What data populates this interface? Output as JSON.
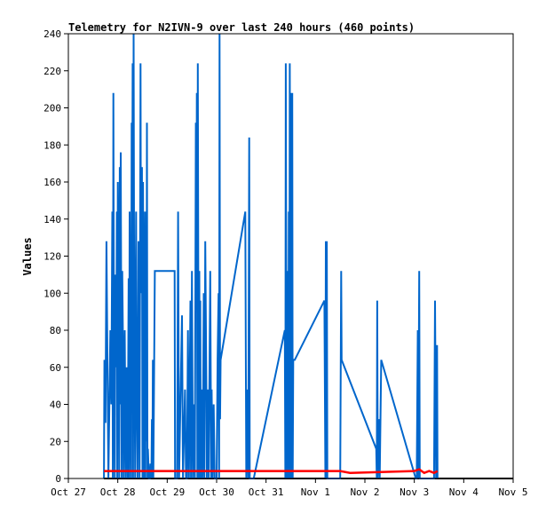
{
  "chart_data": {
    "type": "line",
    "title": "Telemetry for N2IVN-9 over last 240 hours (460 points)",
    "xlabel": "",
    "ylabel": "Values",
    "x_ticks": [
      "Oct 27",
      "Oct 28",
      "Oct 29",
      "Oct 30",
      "Oct 31",
      "Nov 1",
      "Nov 2",
      "Nov 3",
      "Nov 4",
      "Nov 5"
    ],
    "y_ticks": [
      "0",
      "20",
      "40",
      "60",
      "80",
      "100",
      "120",
      "140",
      "160",
      "180",
      "200",
      "220",
      "240"
    ],
    "xlim": [
      0,
      9
    ],
    "ylim": [
      0,
      240
    ],
    "grid": false,
    "legend": "none",
    "series": [
      {
        "color": "#0066cc",
        "points": [
          [
            0.72,
            0
          ],
          [
            0.73,
            64
          ],
          [
            0.75,
            30
          ],
          [
            0.77,
            128
          ],
          [
            0.79,
            64
          ],
          [
            0.81,
            0
          ],
          [
            0.83,
            40
          ],
          [
            0.85,
            80
          ],
          [
            0.87,
            40
          ],
          [
            0.89,
            144
          ],
          [
            0.9,
            0
          ],
          [
            0.91,
            208
          ],
          [
            0.92,
            100
          ],
          [
            0.94,
            0
          ],
          [
            0.95,
            110
          ],
          [
            0.97,
            60
          ],
          [
            0.98,
            144
          ],
          [
            0.99,
            0
          ],
          [
            1.0,
            160
          ],
          [
            1.02,
            80
          ],
          [
            1.03,
            0
          ],
          [
            1.04,
            168
          ],
          [
            1.05,
            40
          ],
          [
            1.06,
            176
          ],
          [
            1.08,
            0
          ],
          [
            1.09,
            112
          ],
          [
            1.11,
            60
          ],
          [
            1.12,
            0
          ],
          [
            1.14,
            80
          ],
          [
            1.16,
            0
          ],
          [
            1.18,
            60
          ],
          [
            1.2,
            0
          ],
          [
            1.22,
            108
          ],
          [
            1.23,
            0
          ],
          [
            1.24,
            144
          ],
          [
            1.25,
            72
          ],
          [
            1.27,
            0
          ],
          [
            1.28,
            192
          ],
          [
            1.29,
            100
          ],
          [
            1.3,
            224
          ],
          [
            1.31,
            0
          ],
          [
            1.32,
            240
          ],
          [
            1.33,
            128
          ],
          [
            1.35,
            0
          ],
          [
            1.37,
            144
          ],
          [
            1.38,
            60
          ],
          [
            1.4,
            0
          ],
          [
            1.42,
            128
          ],
          [
            1.44,
            0
          ],
          [
            1.46,
            224
          ],
          [
            1.47,
            100
          ],
          [
            1.49,
            168
          ],
          [
            1.5,
            0
          ],
          [
            1.51,
            160
          ],
          [
            1.52,
            80
          ],
          [
            1.53,
            0
          ],
          [
            1.55,
            144
          ],
          [
            1.56,
            0
          ],
          [
            1.57,
            96
          ],
          [
            1.58,
            20
          ],
          [
            1.59,
            192
          ],
          [
            1.6,
            0
          ],
          [
            1.61,
            16
          ],
          [
            1.63,
            0
          ],
          [
            1.65,
            0
          ],
          [
            1.66,
            8
          ],
          [
            1.68,
            0
          ],
          [
            1.69,
            32
          ],
          [
            1.7,
            0
          ],
          [
            1.71,
            64
          ],
          [
            1.72,
            0
          ],
          [
            1.75,
            112
          ],
          [
            2.15,
            112
          ],
          [
            2.16,
            0
          ],
          [
            2.2,
            0
          ],
          [
            2.22,
            144
          ],
          [
            2.24,
            0
          ],
          [
            2.3,
            88
          ],
          [
            2.32,
            0
          ],
          [
            2.36,
            48
          ],
          [
            2.38,
            0
          ],
          [
            2.4,
            0
          ],
          [
            2.42,
            80
          ],
          [
            2.44,
            0
          ],
          [
            2.47,
            96
          ],
          [
            2.48,
            0
          ],
          [
            2.5,
            112
          ],
          [
            2.52,
            0
          ],
          [
            2.54,
            40
          ],
          [
            2.56,
            0
          ],
          [
            2.58,
            192
          ],
          [
            2.59,
            100
          ],
          [
            2.6,
            208
          ],
          [
            2.61,
            0
          ],
          [
            2.62,
            224
          ],
          [
            2.63,
            100
          ],
          [
            2.64,
            0
          ],
          [
            2.65,
            112
          ],
          [
            2.66,
            0
          ],
          [
            2.67,
            96
          ],
          [
            2.68,
            0
          ],
          [
            2.7,
            48
          ],
          [
            2.71,
            0
          ],
          [
            2.72,
            8
          ],
          [
            2.74,
            100
          ],
          [
            2.75,
            0
          ],
          [
            2.77,
            128
          ],
          [
            2.79,
            60
          ],
          [
            2.8,
            0
          ],
          [
            2.82,
            48
          ],
          [
            2.84,
            0
          ],
          [
            2.87,
            112
          ],
          [
            2.89,
            0
          ],
          [
            2.9,
            48
          ],
          [
            2.92,
            0
          ],
          [
            2.94,
            40
          ],
          [
            2.96,
            0
          ],
          [
            3.0,
            0
          ],
          [
            3.02,
            64
          ],
          [
            3.04,
            100
          ],
          [
            3.05,
            0
          ],
          [
            3.06,
            240
          ],
          [
            3.07,
            32
          ],
          [
            3.08,
            64
          ],
          [
            3.58,
            144
          ],
          [
            3.6,
            0
          ],
          [
            3.62,
            48
          ],
          [
            3.64,
            0
          ],
          [
            3.66,
            184
          ],
          [
            3.67,
            0
          ],
          [
            3.75,
            0
          ],
          [
            4.38,
            80
          ],
          [
            4.39,
            0
          ],
          [
            4.4,
            224
          ],
          [
            4.42,
            0
          ],
          [
            4.44,
            112
          ],
          [
            4.45,
            0
          ],
          [
            4.46,
            144
          ],
          [
            4.47,
            0
          ],
          [
            4.48,
            224
          ],
          [
            4.5,
            0
          ],
          [
            4.51,
            208
          ],
          [
            4.52,
            0
          ],
          [
            4.53,
            208
          ],
          [
            4.54,
            0
          ],
          [
            4.55,
            64
          ],
          [
            4.58,
            64
          ],
          [
            5.18,
            96
          ],
          [
            5.2,
            0
          ],
          [
            5.21,
            128
          ],
          [
            5.22,
            0
          ],
          [
            5.23,
            128
          ],
          [
            5.24,
            0
          ],
          [
            5.5,
            0
          ],
          [
            5.52,
            112
          ],
          [
            5.53,
            64
          ],
          [
            6.23,
            16
          ],
          [
            6.24,
            0
          ],
          [
            6.25,
            96
          ],
          [
            6.26,
            0
          ],
          [
            6.28,
            32
          ],
          [
            6.3,
            0
          ],
          [
            6.33,
            64
          ],
          [
            7.03,
            0
          ],
          [
            7.05,
            0
          ],
          [
            7.07,
            80
          ],
          [
            7.08,
            0
          ],
          [
            7.1,
            112
          ],
          [
            7.11,
            0
          ],
          [
            7.4,
            0
          ],
          [
            7.42,
            96
          ],
          [
            7.44,
            0
          ],
          [
            7.46,
            72
          ],
          [
            7.47,
            0
          ]
        ]
      },
      {
        "color": "#ff0000",
        "points": [
          [
            0.72,
            4
          ],
          [
            1.75,
            4
          ],
          [
            2.15,
            4
          ],
          [
            3.2,
            4
          ],
          [
            4.0,
            4
          ],
          [
            5.5,
            4
          ],
          [
            5.7,
            3
          ],
          [
            7.0,
            4
          ],
          [
            7.1,
            5
          ],
          [
            7.2,
            3
          ],
          [
            7.3,
            4
          ],
          [
            7.4,
            3
          ],
          [
            7.47,
            4
          ]
        ]
      }
    ]
  }
}
